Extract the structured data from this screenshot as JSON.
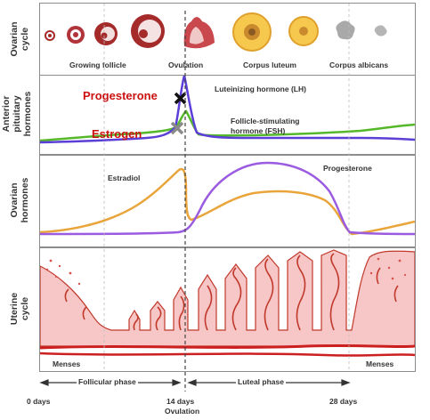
{
  "rows": {
    "ovarian_cycle": [
      "Ovarian",
      "cycle"
    ],
    "anterior_pituitary": [
      "Anterior",
      "pituitary",
      "hormones"
    ],
    "ovarian_hormones": [
      "Ovarian",
      "hormones"
    ],
    "uterine_cycle": [
      "Uterine",
      "cycle"
    ]
  },
  "ovary_stages": {
    "growing_follicle": "Growing follicle",
    "ovulation": "Ovulation",
    "corpus_luteum": "Corpus luteum",
    "corpus_albicans": "Corpus albicans"
  },
  "pituitary": {
    "lh": "Luteinizing hormone (LH)",
    "fsh_line1": "Follicle-stimulating",
    "fsh_line2": "hormone (FSH)",
    "overlay_progesterone": "Progesterone",
    "overlay_estrogen": "Estrogen"
  },
  "ovarian": {
    "estradiol": "Estradiol",
    "progesterone": "Progesterone"
  },
  "uterine": {
    "menses_left": "Menses",
    "menses_right": "Menses",
    "follicular_phase": "Follicular phase",
    "luteal_phase": "Luteal phase"
  },
  "axis": {
    "day0": "0 days",
    "day14": "14 days",
    "day14_sub": "Ovulation",
    "day28": "28 days"
  },
  "colors": {
    "lh": "#5b3fd6",
    "fsh": "#55b82a",
    "estradiol": "#e9a43a",
    "progesterone": "#9b5be0",
    "follicle": "#a52a2a",
    "luteum": "#f6c94e",
    "endometrium": "#f7c6c6",
    "vessel": "#cc1f1f",
    "overlay_red": "#cc1111"
  }
}
